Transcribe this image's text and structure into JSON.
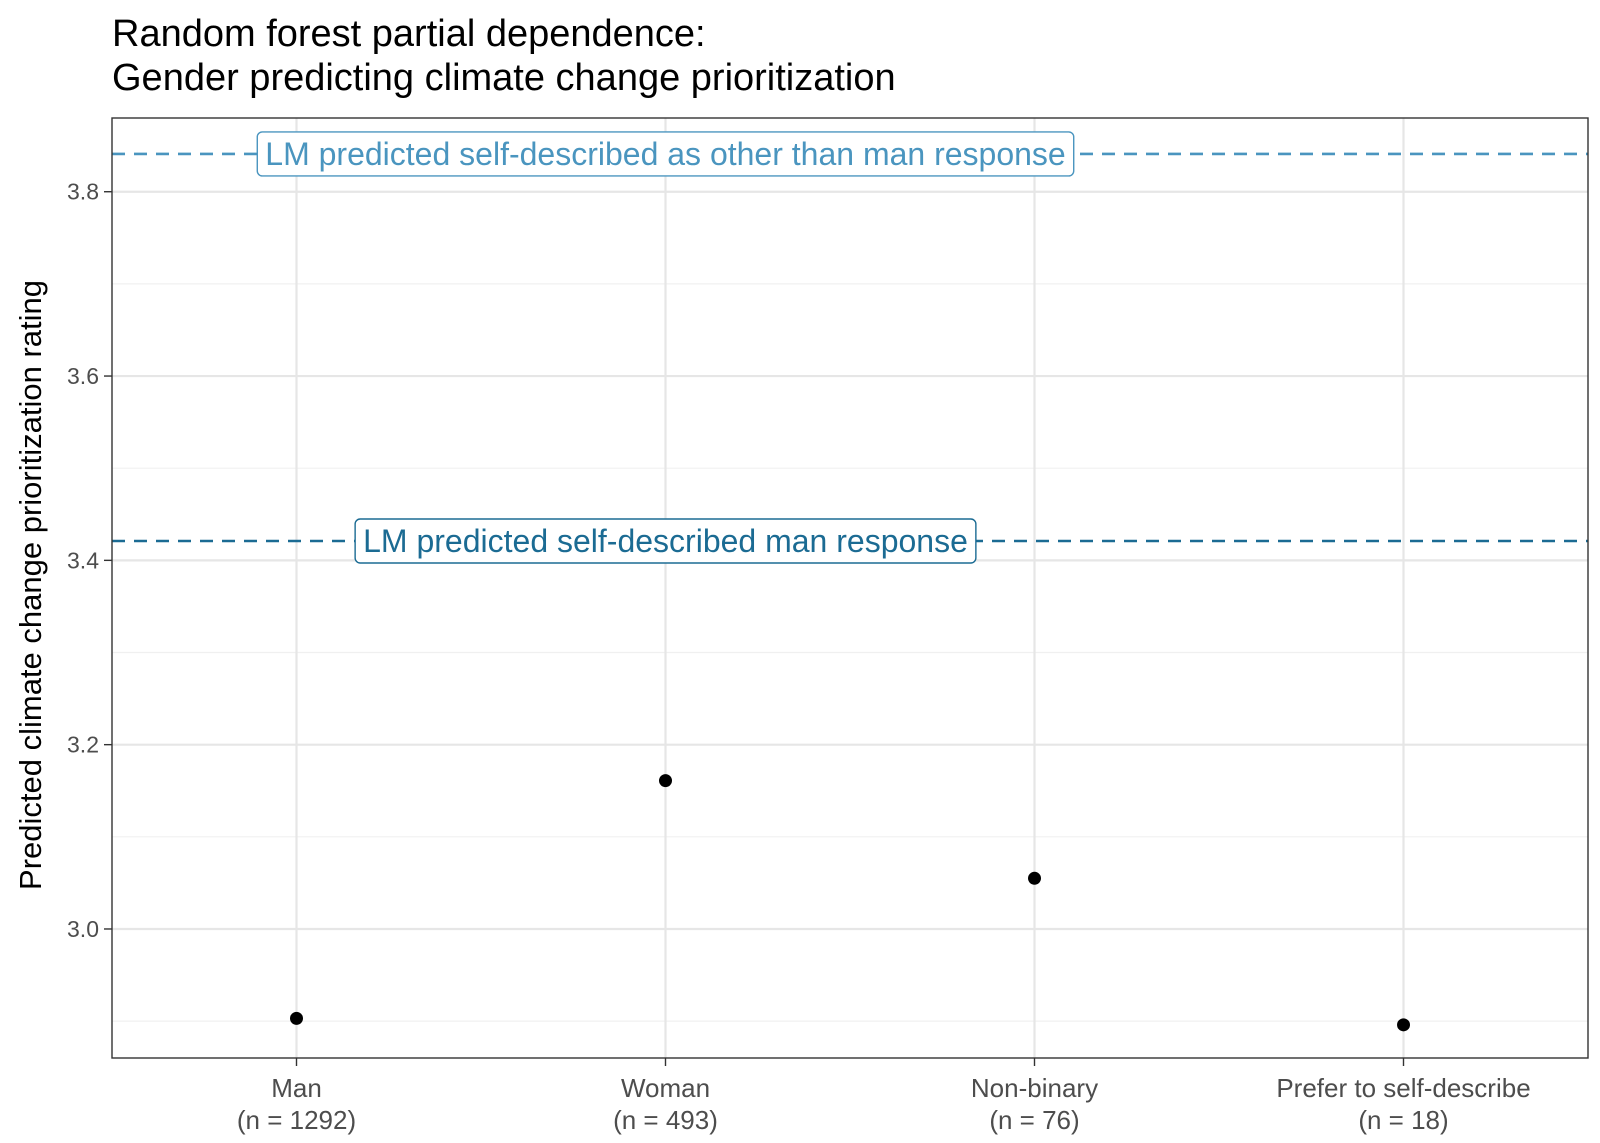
{
  "chart_data": {
    "type": "scatter",
    "title": [
      "Random forest partial dependence:",
      "Gender predicting climate change prioritization"
    ],
    "xlabel": "",
    "ylabel": "Predicted climate change prioritization rating",
    "categories": [
      {
        "name": "Man",
        "n_label": "(n = 1292)"
      },
      {
        "name": "Woman",
        "n_label": "(n = 493)"
      },
      {
        "name": "Non-binary",
        "n_label": "(n = 76)"
      },
      {
        "name": "Prefer to self-describe",
        "n_label": "(n = 18)"
      }
    ],
    "values": [
      2.903,
      3.161,
      3.055,
      2.896
    ],
    "ylim": [
      2.86,
      3.88
    ],
    "yticks": [
      "3.0",
      "3.2",
      "3.4",
      "3.6",
      "3.8"
    ],
    "grid": true,
    "reference_lines": [
      {
        "label": "LM predicted self-described as other than man response",
        "y": 3.841,
        "color": "#4a95bf",
        "style": "dashed"
      },
      {
        "label": "LM predicted self-described man response",
        "y": 3.421,
        "color": "#1b6b93",
        "style": "dashed"
      }
    ],
    "point_color": "#000000"
  }
}
